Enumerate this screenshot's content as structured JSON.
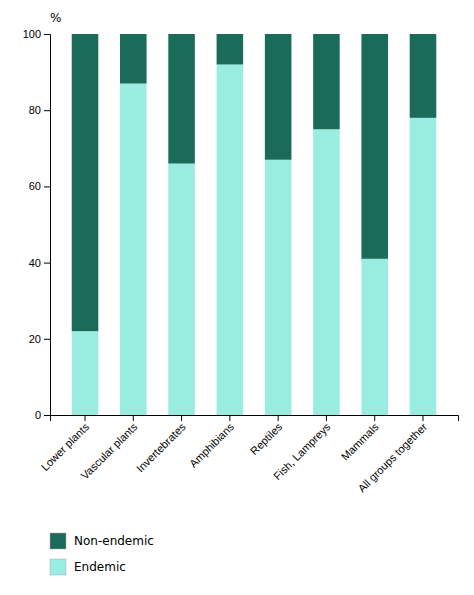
{
  "chart_data": {
    "type": "bar",
    "stacked": true,
    "categories": [
      "Lower plants",
      "Vascular plants",
      "Invertebrates",
      "Amphibians",
      "Reptiles",
      "Fish, Lampreys",
      "Mammals",
      "All groups together"
    ],
    "series": [
      {
        "name": "Endemic",
        "color": "#99EDE0",
        "values": [
          22,
          87,
          66,
          92,
          67,
          75,
          41,
          78
        ]
      },
      {
        "name": "Non-endemic",
        "color": "#1A6B5A",
        "values": [
          78,
          13,
          34,
          8,
          33,
          25,
          59,
          22
        ]
      }
    ],
    "ylabel": "%",
    "ylim": [
      0,
      100
    ],
    "yticks": [
      0,
      20,
      40,
      60,
      80,
      100
    ],
    "grid": false,
    "legend": "bottom"
  }
}
